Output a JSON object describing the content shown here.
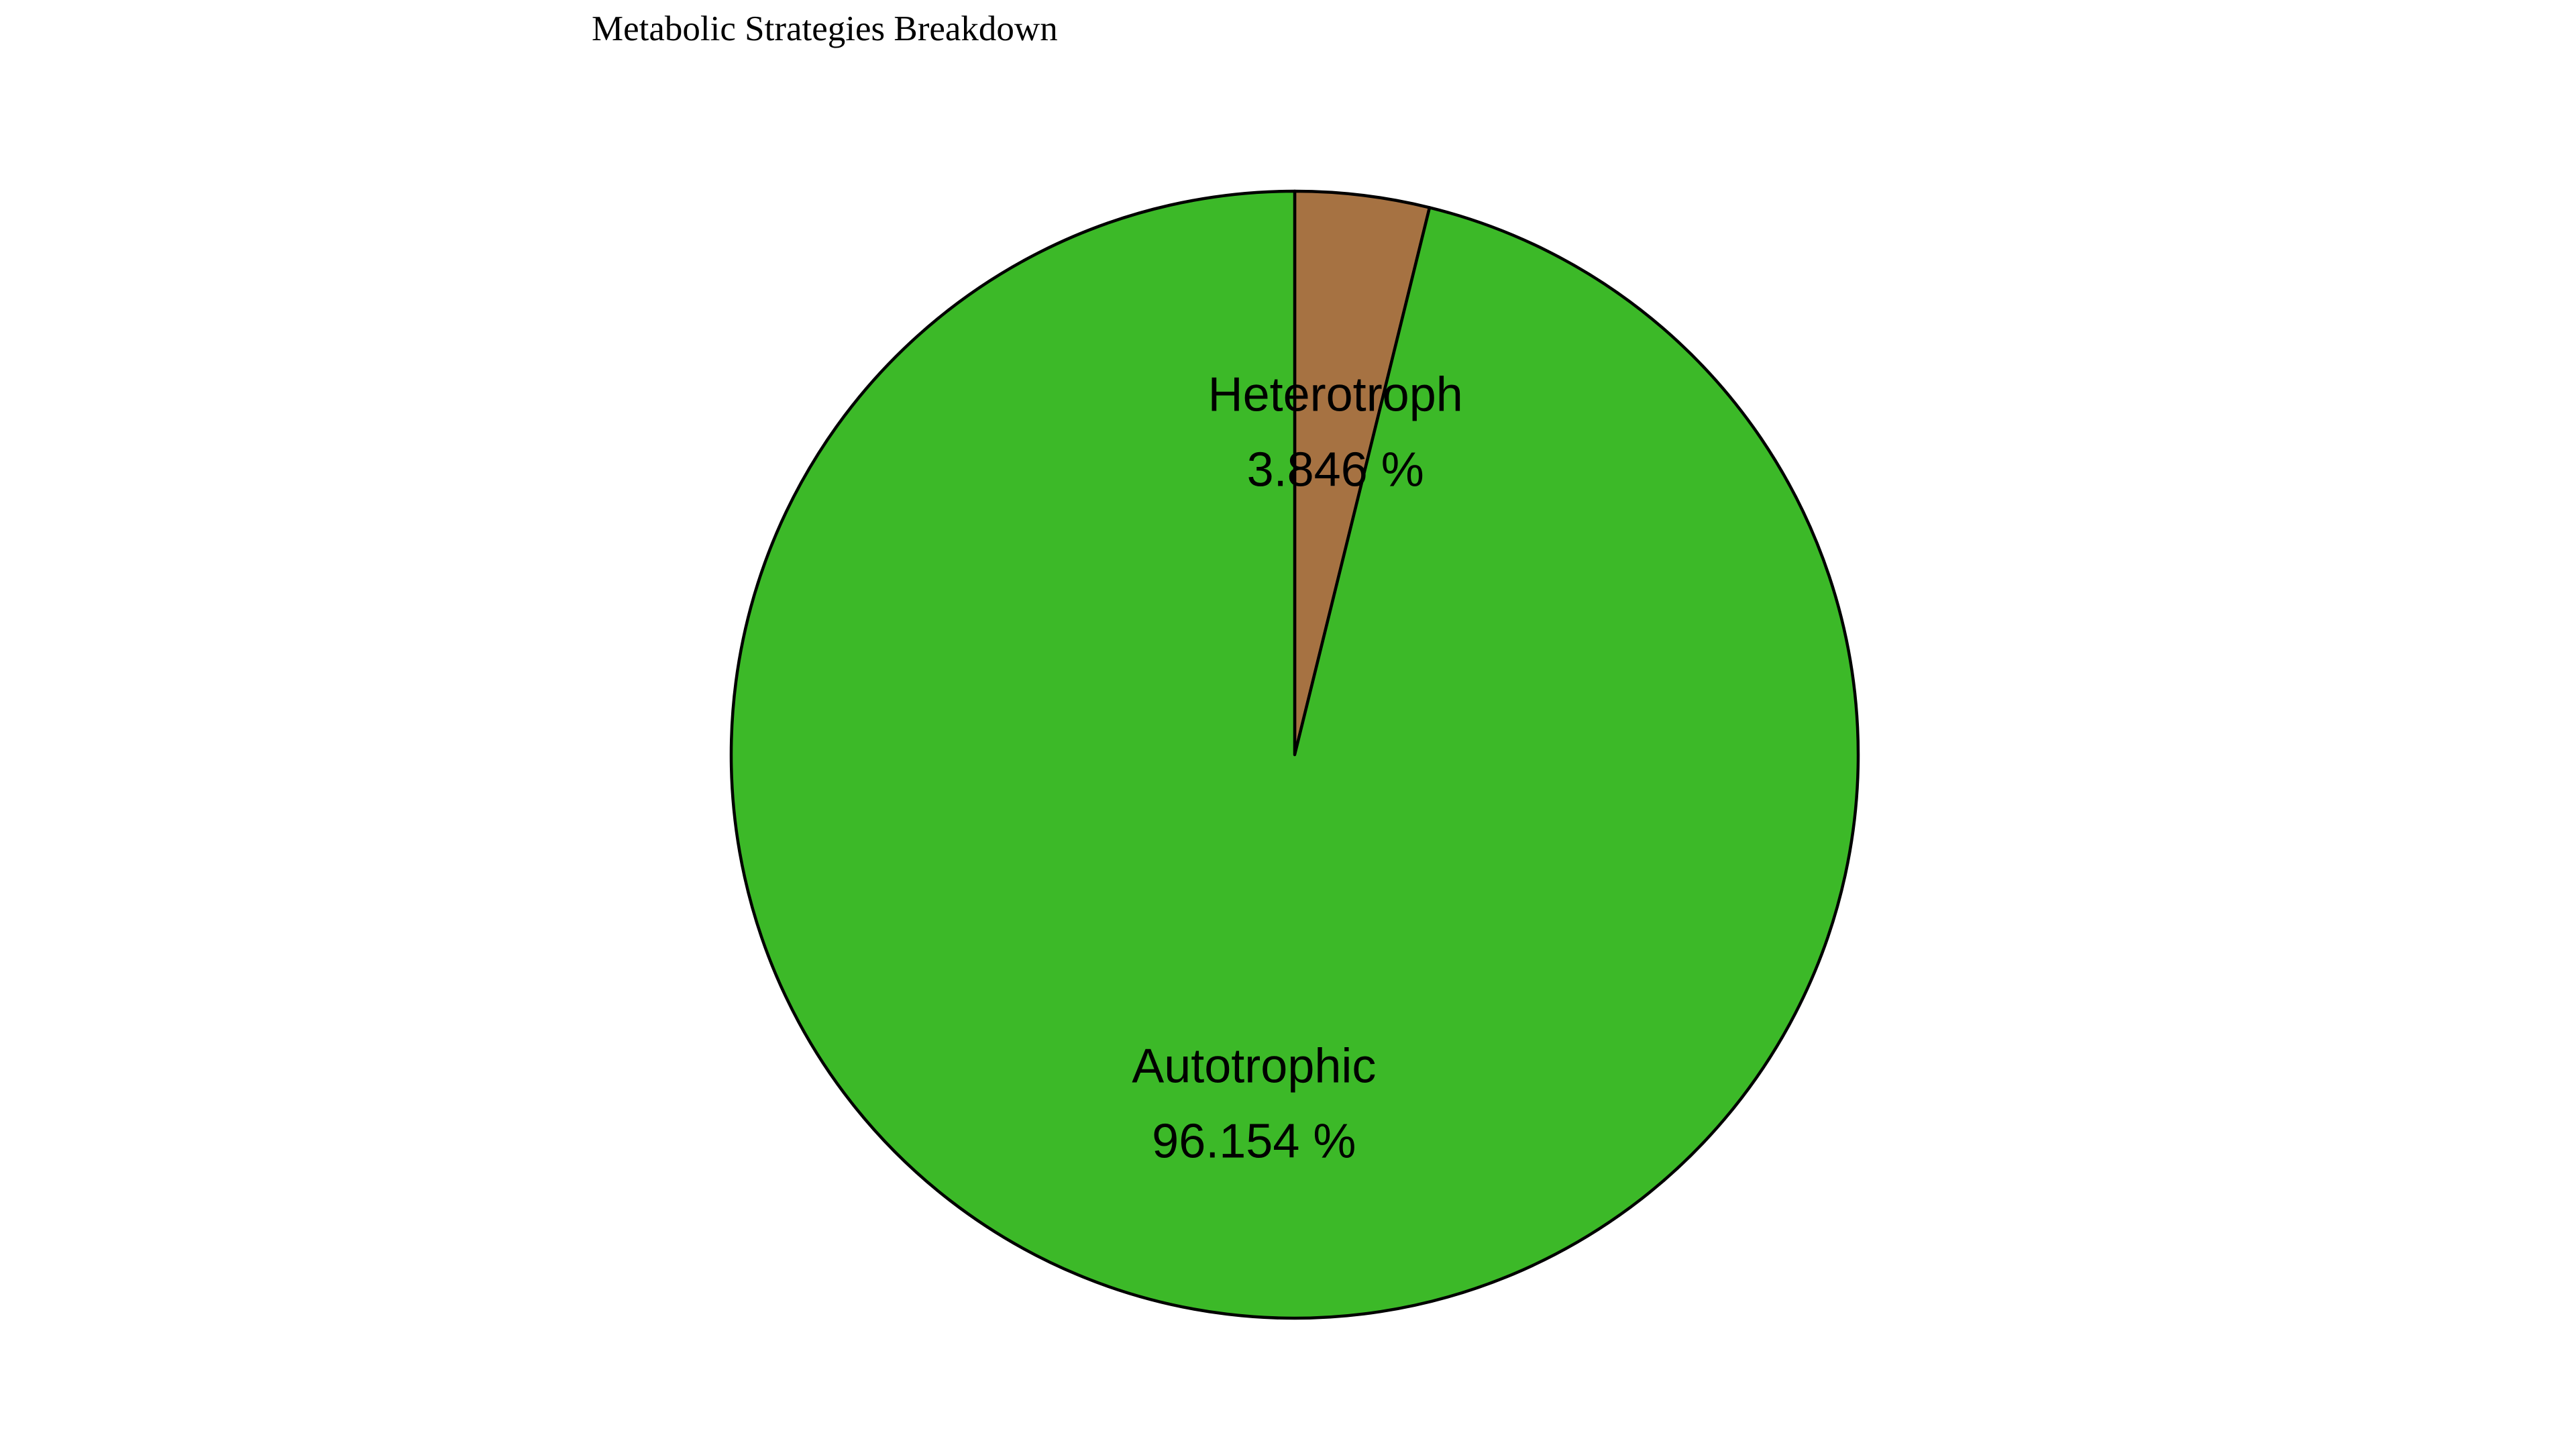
{
  "chart_data": {
    "type": "pie",
    "title": "Metabolic Strategies Breakdown",
    "start_angle_deg": 0,
    "direction": "clockwise",
    "slices": [
      {
        "label": "Heterotroph",
        "value": 3.846,
        "percent_text": "3.846 %",
        "color": "#a67242"
      },
      {
        "label": "Autotrophic",
        "value": 96.154,
        "percent_text": "96.154 %",
        "color": "#3cb928"
      }
    ]
  }
}
